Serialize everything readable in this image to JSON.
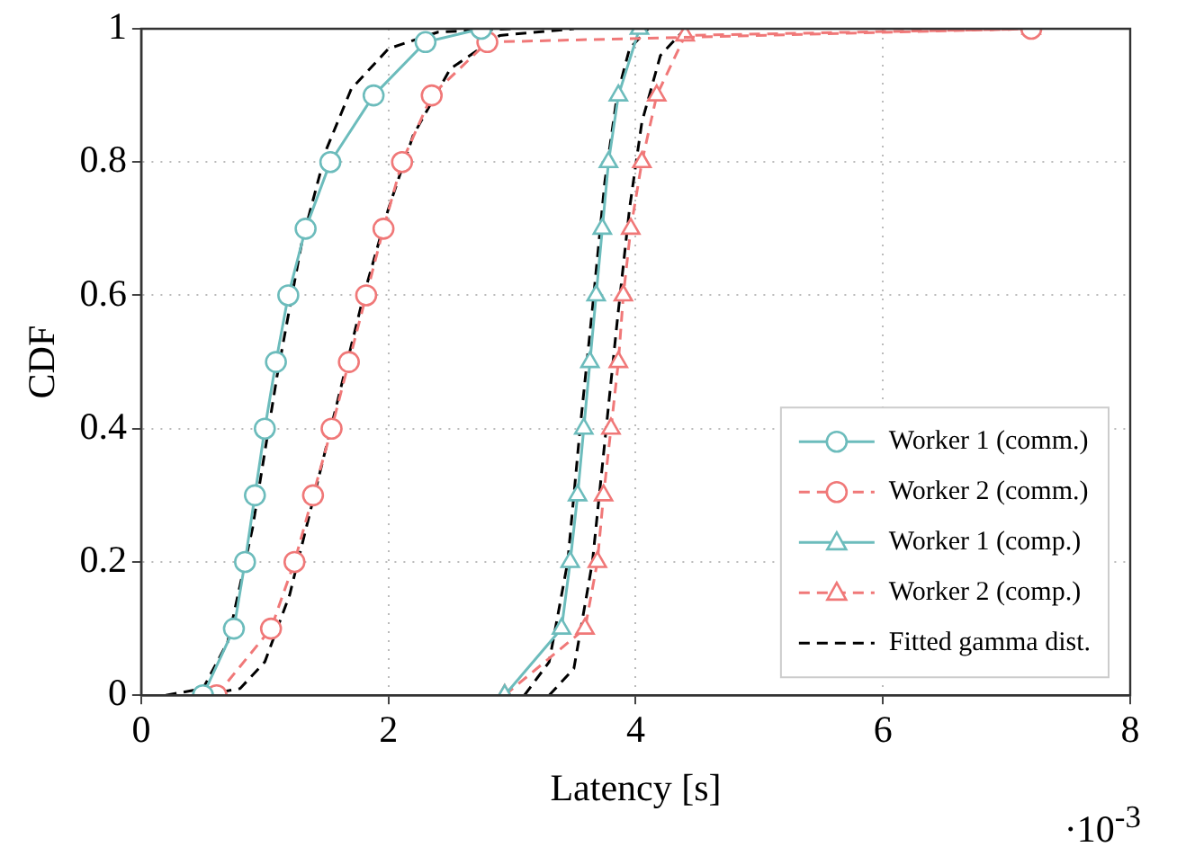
{
  "chart_data": {
    "type": "line",
    "xlabel": "Latency [s]",
    "ylabel": "CDF",
    "annotations": [
      "·10$^{-3}$"
    ],
    "xlim": [
      0,
      8
    ],
    "xticks": [
      0,
      2,
      4,
      6,
      8
    ],
    "ylim": [
      0,
      1
    ],
    "yticks": [
      0,
      0.2,
      0.4,
      0.6,
      0.8,
      1
    ],
    "grid": true,
    "legend": "bottom right",
    "series": [
      {
        "name": "Worker 1 (comm.)",
        "color": "#6cbcbc",
        "marker": "circle",
        "line_style": "solid",
        "x": [
          0.5,
          0.75,
          0.84,
          0.92,
          1.0,
          1.09,
          1.19,
          1.33,
          1.53,
          1.88,
          2.3,
          2.75
        ],
        "values": [
          0,
          0.1,
          0.2,
          0.3,
          0.4,
          0.5,
          0.6,
          0.7,
          0.8,
          0.9,
          0.98,
          1
        ]
      },
      {
        "name": "Worker 2 (comm.)",
        "color": "#f07878",
        "marker": "circle",
        "line_style": "dashed",
        "x": [
          0.61,
          1.05,
          1.24,
          1.39,
          1.54,
          1.68,
          1.82,
          1.96,
          2.11,
          2.35,
          2.8,
          7.2
        ],
        "values": [
          0,
          0.1,
          0.2,
          0.3,
          0.4,
          0.5,
          0.6,
          0.7,
          0.8,
          0.9,
          0.98,
          1
        ]
      },
      {
        "name": "Worker 1 (comp.)",
        "color": "#6cbcbc",
        "marker": "triangle",
        "line_style": "solid",
        "x": [
          2.94,
          3.4,
          3.47,
          3.53,
          3.58,
          3.63,
          3.68,
          3.73,
          3.78,
          3.86,
          4.03
        ],
        "values": [
          0,
          0.1,
          0.2,
          0.3,
          0.4,
          0.5,
          0.6,
          0.7,
          0.8,
          0.9,
          1
        ]
      },
      {
        "name": "Worker 2 (comp.)",
        "color": "#f07878",
        "marker": "triangle",
        "line_style": "dashed",
        "x": [
          2.94,
          3.59,
          3.69,
          3.74,
          3.8,
          3.86,
          3.9,
          3.96,
          4.05,
          4.17,
          4.4,
          7.2
        ],
        "values": [
          0,
          0.1,
          0.2,
          0.3,
          0.4,
          0.5,
          0.6,
          0.7,
          0.8,
          0.9,
          0.99,
          1
        ]
      },
      {
        "name": "Fitted gamma dist.",
        "color": "#000000",
        "marker": "none",
        "line_style": "dashed",
        "x": [
          0.2,
          0.5,
          0.7,
          0.9,
          1.1,
          1.3,
          1.5,
          1.7,
          2.0,
          2.4,
          3.0
        ],
        "values": [
          0,
          0.01,
          0.08,
          0.25,
          0.48,
          0.68,
          0.82,
          0.91,
          0.97,
          0.995,
          1
        ]
      },
      {
        "color": "#000000",
        "marker": "none",
        "line_style": "dashed",
        "x": [
          0.5,
          0.8,
          1.0,
          1.2,
          1.4,
          1.6,
          1.8,
          2.0,
          2.2,
          2.5,
          2.9,
          3.5
        ],
        "values": [
          0,
          0.01,
          0.05,
          0.15,
          0.3,
          0.45,
          0.6,
          0.73,
          0.84,
          0.94,
          0.99,
          1
        ]
      },
      {
        "color": "#000000",
        "marker": "none",
        "line_style": "dashed",
        "x": [
          3.1,
          3.3,
          3.45,
          3.55,
          3.65,
          3.75,
          3.85,
          3.95,
          4.1
        ],
        "values": [
          0,
          0.05,
          0.2,
          0.4,
          0.58,
          0.77,
          0.9,
          0.97,
          1
        ]
      },
      {
        "color": "#000000",
        "marker": "none",
        "line_style": "dashed",
        "x": [
          3.3,
          3.5,
          3.65,
          3.75,
          3.85,
          3.95,
          4.05,
          4.2,
          4.4
        ],
        "values": [
          0,
          0.04,
          0.2,
          0.38,
          0.56,
          0.73,
          0.86,
          0.96,
          1
        ]
      }
    ]
  }
}
